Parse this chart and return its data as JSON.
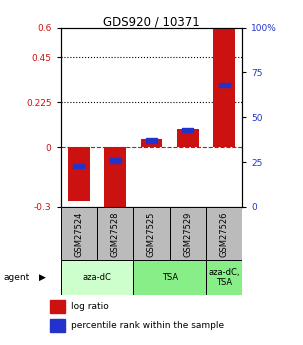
{
  "title": "GDS920 / 10371",
  "samples": [
    "GSM27524",
    "GSM27528",
    "GSM27525",
    "GSM27529",
    "GSM27526"
  ],
  "log_ratios": [
    -0.27,
    -0.32,
    0.04,
    0.09,
    0.6
  ],
  "percentile_ranks": [
    23,
    26,
    37,
    43,
    68
  ],
  "ylim_left": [
    -0.3,
    0.6
  ],
  "ylim_right": [
    0,
    100
  ],
  "yticks_left": [
    -0.3,
    0,
    0.225,
    0.45,
    0.6
  ],
  "ytick_labels_left": [
    "-0.3",
    "0",
    "0.225",
    "0.45",
    "0.6"
  ],
  "yticks_right": [
    0,
    25,
    50,
    75,
    100
  ],
  "ytick_labels_right": [
    "0",
    "25",
    "50",
    "75",
    "100%"
  ],
  "hlines": [
    0.225,
    0.45
  ],
  "bar_color": "#cc1111",
  "dot_color": "#2233cc",
  "agent_labels": [
    "aza-dC",
    "TSA",
    "aza-dC,\nTSA"
  ],
  "agent_groups": [
    [
      0,
      1
    ],
    [
      2,
      3
    ],
    [
      4
    ]
  ],
  "group_colors": [
    "#ccffcc",
    "#88ee88",
    "#88ee88"
  ],
  "sample_bg_color": "#bbbbbb",
  "bar_width": 0.6
}
